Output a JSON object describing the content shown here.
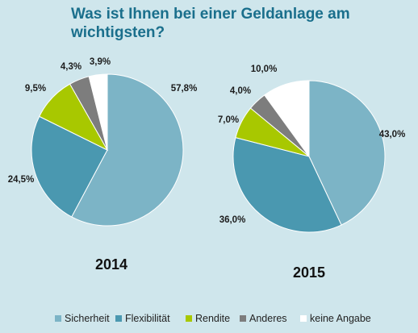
{
  "title": "Was ist Ihnen bei einer Geldanlage am wichtigsten?",
  "chart_data": [
    {
      "type": "pie",
      "title": "2014",
      "categories": [
        "Sicherheit",
        "Flexibilität",
        "Rendite",
        "Anderes",
        "keine Angabe"
      ],
      "values": [
        57.8,
        24.5,
        9.5,
        4.3,
        3.9
      ],
      "labels": [
        "57,8%",
        "24,5%",
        "9,5%",
        "4,3%",
        "3,9%"
      ]
    },
    {
      "type": "pie",
      "title": "2015",
      "categories": [
        "Sicherheit",
        "Flexibilität",
        "Rendite",
        "Anderes",
        "keine Angabe"
      ],
      "values": [
        43.0,
        36.0,
        7.0,
        4.0,
        10.0
      ],
      "labels": [
        "43,0%",
        "36,0%",
        "7,0%",
        "4,0%",
        "10,0%"
      ]
    }
  ],
  "legend": {
    "placement": "bottom",
    "items": [
      "Sicherheit",
      "Flexibilität",
      "Rendite",
      "Anderes",
      "keine Angabe"
    ]
  },
  "colors": [
    "#7cb4c6",
    "#4a98b0",
    "#a8c800",
    "#7d7d7d",
    "#ffffff"
  ]
}
